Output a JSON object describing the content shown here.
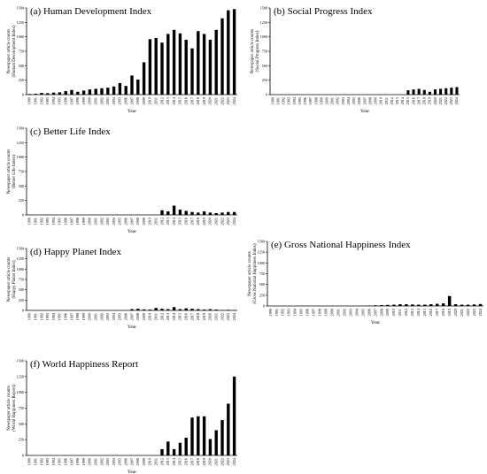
{
  "chart_data": [
    {
      "type": "bar",
      "panel": "a",
      "title": "(a) Human Development Index",
      "ylabel": "Newspaper article counts",
      "ylabel2": "(Human Development Index)",
      "xlabel": "Year",
      "ylim": [
        0,
        1500
      ],
      "yticks": [
        0,
        250,
        500,
        750,
        1000,
        1250,
        1500
      ],
      "categories": [
        "1990",
        "1991",
        "1992",
        "1993",
        "1994",
        "1995",
        "1996",
        "1997",
        "1998",
        "1999",
        "2000",
        "2001",
        "2002",
        "2003",
        "2004",
        "2005",
        "2006",
        "2007",
        "2008",
        "2009",
        "2010",
        "2011",
        "2012",
        "2013",
        "2014",
        "2015",
        "2016",
        "2017",
        "2018",
        "2019",
        "2020",
        "2021",
        "2022",
        "2023",
        "2024"
      ],
      "values": [
        10,
        15,
        30,
        25,
        35,
        40,
        60,
        80,
        50,
        70,
        90,
        100,
        110,
        120,
        140,
        200,
        150,
        330,
        260,
        560,
        960,
        980,
        900,
        1050,
        1120,
        1060,
        950,
        800,
        1100,
        1050,
        950,
        1120,
        1320,
        1460,
        1480
      ]
    },
    {
      "type": "bar",
      "panel": "b",
      "title": "(b) Social Progress Index",
      "ylabel": "Newspaper article counts",
      "ylabel2": "(Social Progress Index)",
      "xlabel": "Year",
      "ylim": [
        0,
        1500
      ],
      "yticks": [
        0,
        250,
        500,
        750,
        1000,
        1250,
        1500
      ],
      "categories": [
        "1990",
        "1991",
        "1992",
        "1993",
        "1994",
        "1995",
        "1996",
        "1997",
        "1998",
        "1999",
        "2000",
        "2001",
        "2002",
        "2003",
        "2004",
        "2005",
        "2006",
        "2007",
        "2008",
        "2009",
        "2010",
        "2011",
        "2012",
        "2013",
        "2014",
        "2015",
        "2016",
        "2017",
        "2018",
        "2019",
        "2020",
        "2021",
        "2022",
        "2023",
        "2024"
      ],
      "values": [
        0,
        0,
        0,
        0,
        0,
        0,
        0,
        0,
        0,
        0,
        0,
        0,
        0,
        0,
        0,
        0,
        0,
        0,
        0,
        0,
        0,
        0,
        0,
        0,
        0,
        75,
        90,
        100,
        80,
        50,
        90,
        100,
        110,
        120,
        130
      ]
    },
    {
      "type": "bar",
      "panel": "c",
      "title": "(c) Better Life Index",
      "ylabel": "Newspaper article counts",
      "ylabel2": "(Better Life Index)",
      "xlabel": "Year",
      "ylim": [
        0,
        1500
      ],
      "yticks": [
        0,
        250,
        500,
        750,
        1000,
        1250,
        1500
      ],
      "categories": [
        "1990",
        "1991",
        "1992",
        "1993",
        "1994",
        "1995",
        "1996",
        "1997",
        "1998",
        "1999",
        "2000",
        "2001",
        "2002",
        "2003",
        "2004",
        "2005",
        "2006",
        "2007",
        "2008",
        "2009",
        "2010",
        "2011",
        "2012",
        "2013",
        "2014",
        "2015",
        "2016",
        "2017",
        "2018",
        "2019",
        "2020",
        "2021",
        "2022",
        "2023",
        "2024"
      ],
      "values": [
        0,
        0,
        0,
        0,
        0,
        0,
        0,
        0,
        0,
        0,
        0,
        0,
        0,
        0,
        0,
        0,
        0,
        0,
        0,
        0,
        0,
        0,
        80,
        60,
        160,
        90,
        70,
        50,
        40,
        60,
        40,
        30,
        40,
        50,
        50
      ]
    },
    {
      "type": "bar",
      "panel": "d",
      "title": "(d) Happy Planet Index",
      "ylabel": "Newspaper article counts",
      "ylabel2": "(Happy Planet Index)",
      "xlabel": "Year",
      "ylim": [
        0,
        1500
      ],
      "yticks": [
        0,
        250,
        500,
        750,
        1000,
        1250,
        1500
      ],
      "categories": [
        "1990",
        "1991",
        "1992",
        "1993",
        "1994",
        "1995",
        "1996",
        "1997",
        "1998",
        "1999",
        "2000",
        "2001",
        "2002",
        "2003",
        "2004",
        "2005",
        "2006",
        "2007",
        "2008",
        "2009",
        "2010",
        "2011",
        "2012",
        "2013",
        "2014",
        "2015",
        "2016",
        "2017",
        "2018",
        "2019",
        "2020",
        "2021",
        "2022",
        "2023",
        "2024"
      ],
      "values": [
        0,
        0,
        0,
        0,
        0,
        0,
        0,
        0,
        0,
        0,
        0,
        0,
        0,
        0,
        0,
        0,
        0,
        30,
        40,
        25,
        20,
        60,
        40,
        30,
        80,
        30,
        50,
        40,
        30,
        20,
        30,
        20,
        10,
        15,
        10
      ]
    },
    {
      "type": "bar",
      "panel": "e",
      "title": "(e) Gross National Happiness Index",
      "ylabel": "Newspaper article counts",
      "ylabel2": "(Gross National Happiness Index)",
      "xlabel": "Year",
      "ylim": [
        0,
        1500
      ],
      "yticks": [
        0,
        250,
        500,
        750,
        1000,
        1250,
        1500
      ],
      "categories": [
        "1990",
        "1991",
        "1992",
        "1993",
        "1994",
        "1995",
        "1996",
        "1997",
        "1998",
        "1999",
        "2000",
        "2001",
        "2002",
        "2003",
        "2004",
        "2005",
        "2006",
        "2007",
        "2008",
        "2009",
        "2010",
        "2011",
        "2012",
        "2013",
        "2014",
        "2015",
        "2016",
        "2017",
        "2018",
        "2019",
        "2020",
        "2021",
        "2022",
        "2023",
        "2024"
      ],
      "values": [
        0,
        0,
        0,
        0,
        0,
        0,
        0,
        0,
        0,
        0,
        0,
        0,
        0,
        0,
        0,
        0,
        10,
        15,
        20,
        25,
        30,
        40,
        40,
        35,
        30,
        30,
        40,
        50,
        60,
        230,
        40,
        30,
        30,
        35,
        45
      ]
    },
    {
      "type": "bar",
      "panel": "f",
      "title": "(f) World Happiness Report",
      "ylabel": "Newspaper article counts",
      "ylabel2": "(World Happiness Report)",
      "xlabel": "Year",
      "ylim": [
        0,
        1500
      ],
      "yticks": [
        0,
        250,
        500,
        750,
        1000,
        1250,
        1500
      ],
      "categories": [
        "1990",
        "1991",
        "1992",
        "1993",
        "1994",
        "1995",
        "1996",
        "1997",
        "1998",
        "1999",
        "2000",
        "2001",
        "2002",
        "2003",
        "2004",
        "2005",
        "2006",
        "2007",
        "2008",
        "2009",
        "2010",
        "2011",
        "2012",
        "2013",
        "2014",
        "2015",
        "2016",
        "2017",
        "2018",
        "2019",
        "2020",
        "2021",
        "2022",
        "2023",
        "2024"
      ],
      "values": [
        0,
        0,
        0,
        0,
        0,
        0,
        0,
        0,
        0,
        0,
        0,
        0,
        0,
        0,
        0,
        0,
        0,
        0,
        0,
        0,
        0,
        0,
        100,
        220,
        100,
        200,
        280,
        600,
        620,
        620,
        260,
        400,
        560,
        820,
        1250
      ]
    }
  ]
}
